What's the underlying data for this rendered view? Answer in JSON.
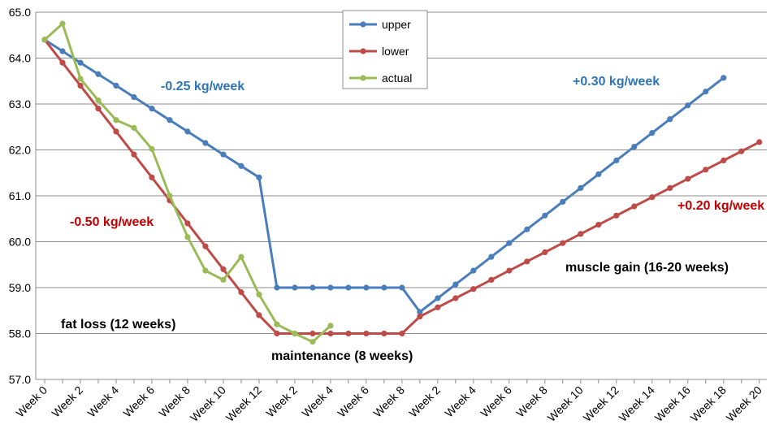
{
  "chart_data": {
    "type": "line",
    "ylim": [
      57.0,
      65.0
    ],
    "yticks": [
      "57.0",
      "58.0",
      "59.0",
      "60.0",
      "61.0",
      "62.0",
      "63.0",
      "64.0",
      "65.0"
    ],
    "grid": "horizontal",
    "legend_position": "top-center",
    "x_tick_labels": [
      "Week 0",
      "Week 2",
      "Week 4",
      "Week 6",
      "Week 8",
      "Week 10",
      "Week 12",
      "Week 2",
      "Week 4",
      "Week 6",
      "Week 8",
      "Week 2",
      "Week 4",
      "Week 6",
      "Week 8",
      "Week 10",
      "Week 12",
      "Week 14",
      "Week 16",
      "Week 18",
      "Week 20"
    ],
    "series": [
      {
        "name": "upper",
        "color": "#4a7ebb",
        "points": [
          [
            0,
            64.4
          ],
          [
            1,
            64.15
          ],
          [
            2,
            63.9
          ],
          [
            3,
            63.65
          ],
          [
            4,
            63.4
          ],
          [
            5,
            63.15
          ],
          [
            6,
            62.9
          ],
          [
            7,
            62.65
          ],
          [
            8,
            62.4
          ],
          [
            9,
            62.15
          ],
          [
            10,
            61.9
          ],
          [
            11,
            61.65
          ],
          [
            12,
            61.4
          ],
          [
            13,
            59.0
          ],
          [
            14,
            59.0
          ],
          [
            15,
            59.0
          ],
          [
            16,
            59.0
          ],
          [
            17,
            59.0
          ],
          [
            18,
            59.0
          ],
          [
            19,
            59.0
          ],
          [
            20,
            59.0
          ],
          [
            21,
            58.47
          ],
          [
            22,
            58.77
          ],
          [
            23,
            59.07
          ],
          [
            24,
            59.37
          ],
          [
            25,
            59.67
          ],
          [
            26,
            59.97
          ],
          [
            27,
            60.27
          ],
          [
            28,
            60.57
          ],
          [
            29,
            60.87
          ],
          [
            30,
            61.17
          ],
          [
            31,
            61.47
          ],
          [
            32,
            61.77
          ],
          [
            33,
            62.07
          ],
          [
            34,
            62.37
          ],
          [
            35,
            62.67
          ],
          [
            36,
            62.97
          ],
          [
            37,
            63.27
          ],
          [
            38,
            63.57
          ]
        ]
      },
      {
        "name": "lower",
        "color": "#be4b48",
        "points": [
          [
            0,
            64.4
          ],
          [
            1,
            63.9
          ],
          [
            2,
            63.4
          ],
          [
            3,
            62.9
          ],
          [
            4,
            62.4
          ],
          [
            5,
            61.9
          ],
          [
            6,
            61.4
          ],
          [
            7,
            60.9
          ],
          [
            8,
            60.4
          ],
          [
            9,
            59.9
          ],
          [
            10,
            59.4
          ],
          [
            11,
            58.9
          ],
          [
            12,
            58.4
          ],
          [
            13,
            58.0
          ],
          [
            14,
            58.0
          ],
          [
            15,
            58.0
          ],
          [
            16,
            58.0
          ],
          [
            17,
            58.0
          ],
          [
            18,
            58.0
          ],
          [
            19,
            58.0
          ],
          [
            20,
            58.0
          ],
          [
            21,
            58.37
          ],
          [
            22,
            58.57
          ],
          [
            23,
            58.77
          ],
          [
            24,
            58.97
          ],
          [
            25,
            59.17
          ],
          [
            26,
            59.37
          ],
          [
            27,
            59.57
          ],
          [
            28,
            59.77
          ],
          [
            29,
            59.97
          ],
          [
            30,
            60.17
          ],
          [
            31,
            60.37
          ],
          [
            32,
            60.57
          ],
          [
            33,
            60.77
          ],
          [
            34,
            60.97
          ],
          [
            35,
            61.17
          ],
          [
            36,
            61.37
          ],
          [
            37,
            61.57
          ],
          [
            38,
            61.77
          ],
          [
            39,
            61.97
          ],
          [
            40,
            62.17
          ]
        ]
      },
      {
        "name": "actual",
        "color": "#9bbb59",
        "points": [
          [
            0,
            64.4
          ],
          [
            1,
            64.75
          ],
          [
            2,
            63.55
          ],
          [
            3,
            63.08
          ],
          [
            4,
            62.65
          ],
          [
            5,
            62.48
          ],
          [
            6,
            62.02
          ],
          [
            7,
            61.0
          ],
          [
            8,
            60.1
          ],
          [
            9,
            59.37
          ],
          [
            10,
            59.17
          ],
          [
            11,
            59.67
          ],
          [
            12,
            58.85
          ],
          [
            13,
            58.2
          ],
          [
            14,
            58.0
          ],
          [
            15,
            57.82
          ],
          [
            16,
            58.17
          ]
        ]
      }
    ],
    "annotations": [
      {
        "text": "-0.25 kg/week",
        "color": "#2e75b6"
      },
      {
        "text": "+0.30 kg/week",
        "color": "#2e75b6"
      },
      {
        "text": "-0.50 kg/week",
        "color": "#c00000"
      },
      {
        "text": "+0.20 kg/week",
        "color": "#c00000"
      },
      {
        "text": "fat loss (12 weeks)",
        "color": "#000000"
      },
      {
        "text": "maintenance (8 weeks)",
        "color": "#000000"
      },
      {
        "text": "muscle gain (16-20 weeks)",
        "color": "#000000"
      }
    ]
  }
}
